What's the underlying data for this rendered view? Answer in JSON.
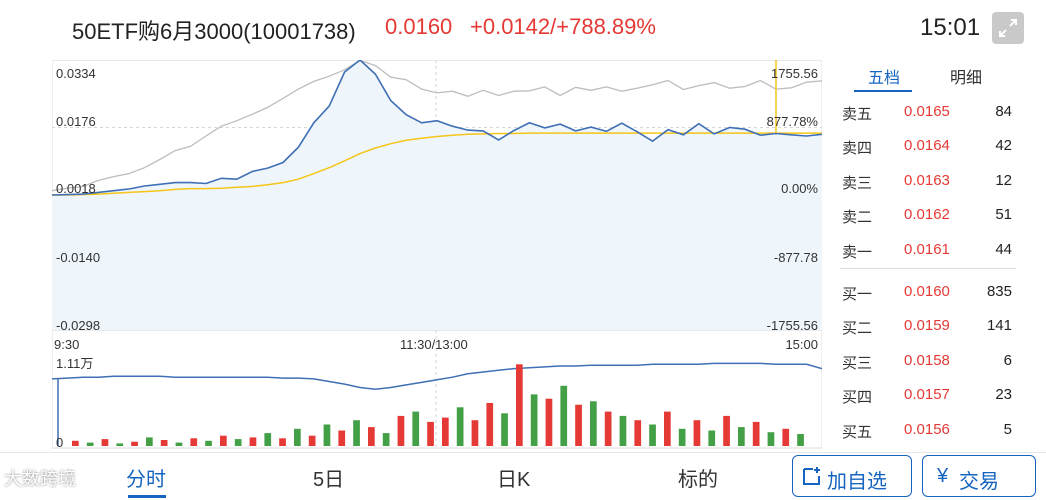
{
  "header": {
    "title": "50ETF购6月3000(10001738)",
    "price": "0.0160",
    "change": "+0.0142/+788.89%",
    "time": "15:01",
    "expand_icon": "expand-arrows-icon"
  },
  "chart": {
    "y_left": [
      "0.0334",
      "0.0176",
      "0.0018",
      "-0.0140",
      "-0.0298"
    ],
    "y_right": [
      "1755.56",
      "877.78%",
      "0.00%",
      "-877.78",
      "-1755.56"
    ],
    "x_labels": [
      "9:30",
      "11:30/13:00",
      "15:00"
    ],
    "volume_label": "1.11万",
    "volume_zero": "0",
    "colors": {
      "price": "#3f6fb5",
      "avg": "#f5c518",
      "ref": "#bdbdbd",
      "up": "#e53935",
      "down": "#43a047",
      "fill": "#eef5fb"
    }
  },
  "chart_data": {
    "type": "line",
    "ylim": [
      -0.0298,
      0.0334
    ],
    "yticks": [
      0.0334,
      0.0176,
      0.0018,
      -0.014,
      -0.0298
    ],
    "series": [
      {
        "values": [
          0.0018,
          0.0019,
          0.002,
          0.0024,
          0.0028,
          0.0032,
          0.0039,
          0.0043,
          0.0047,
          0.0047,
          0.0045,
          0.0057,
          0.0055,
          0.0073,
          0.0081,
          0.0094,
          0.013,
          0.0187,
          0.0226,
          0.0306,
          0.0334,
          0.0301,
          0.0239,
          0.0206,
          0.0187,
          0.0192,
          0.0179,
          0.017,
          0.0168,
          0.0147,
          0.0169,
          0.0187,
          0.0175,
          0.0184,
          0.0168,
          0.0177,
          0.0167,
          0.0186,
          0.0166,
          0.0144,
          0.0171,
          0.0159,
          0.0185,
          0.0161,
          0.0176,
          0.0172,
          0.0158,
          0.0162,
          0.0159,
          0.0156,
          0.016
        ]
      },
      {
        "values": [
          0.0018,
          0.0018,
          0.0019,
          0.002,
          0.0022,
          0.0024,
          0.0026,
          0.0028,
          0.0031,
          0.0033,
          0.0033,
          0.0034,
          0.0036,
          0.0038,
          0.0042,
          0.0047,
          0.0055,
          0.0068,
          0.0082,
          0.0098,
          0.0115,
          0.0128,
          0.0138,
          0.0146,
          0.0151,
          0.0155,
          0.0158,
          0.016,
          0.0161,
          0.0162,
          0.0162,
          0.0163,
          0.0163,
          0.0163,
          0.0163,
          0.0163,
          0.0163,
          0.0163,
          0.0163,
          0.0163,
          0.0163,
          0.0163,
          0.0163,
          0.0163,
          0.0163,
          0.0163,
          0.0163,
          0.0163,
          0.0163,
          0.0163,
          0.0163
        ]
      },
      {
        "values": [
          0.0028,
          0.0034,
          0.0038,
          0.0052,
          0.0061,
          0.0068,
          0.0082,
          0.0101,
          0.0122,
          0.0132,
          0.0156,
          0.0179,
          0.0192,
          0.0207,
          0.0223,
          0.0244,
          0.0266,
          0.0284,
          0.0296,
          0.0311,
          0.0333,
          0.0321,
          0.0294,
          0.0288,
          0.0266,
          0.0257,
          0.0261,
          0.0249,
          0.0263,
          0.0251,
          0.0261,
          0.0262,
          0.0271,
          0.0251,
          0.027,
          0.0263,
          0.0271,
          0.0261,
          0.0268,
          0.0276,
          0.0286,
          0.0265,
          0.0274,
          0.0281,
          0.0268,
          0.0272,
          0.0286,
          0.0266,
          0.0269,
          0.0282,
          0.0285
        ]
      }
    ],
    "volume": {
      "ymax_label": "1.11万",
      "cumulative": [
        0.78,
        0.79,
        0.8,
        0.8,
        0.81,
        0.81,
        0.81,
        0.81,
        0.8,
        0.8,
        0.8,
        0.8,
        0.8,
        0.8,
        0.8,
        0.79,
        0.79,
        0.78,
        0.75,
        0.72,
        0.68,
        0.66,
        0.68,
        0.71,
        0.74,
        0.77,
        0.8,
        0.84,
        0.86,
        0.88,
        0.9,
        0.91,
        0.92,
        0.93,
        0.93,
        0.94,
        0.94,
        0.94,
        0.94,
        0.95,
        0.95,
        0.95,
        0.95,
        0.96,
        0.96,
        0.96,
        0.96,
        0.95,
        0.95,
        0.95,
        0.9
      ],
      "bars": [
        {
          "v": 0.06,
          "c": "up"
        },
        {
          "v": 0.04,
          "c": "down"
        },
        {
          "v": 0.08,
          "c": "up"
        },
        {
          "v": 0.03,
          "c": "down"
        },
        {
          "v": 0.05,
          "c": "up"
        },
        {
          "v": 0.1,
          "c": "down"
        },
        {
          "v": 0.07,
          "c": "up"
        },
        {
          "v": 0.04,
          "c": "down"
        },
        {
          "v": 0.09,
          "c": "up"
        },
        {
          "v": 0.06,
          "c": "down"
        },
        {
          "v": 0.12,
          "c": "up"
        },
        {
          "v": 0.08,
          "c": "down"
        },
        {
          "v": 0.1,
          "c": "up"
        },
        {
          "v": 0.15,
          "c": "down"
        },
        {
          "v": 0.09,
          "c": "up"
        },
        {
          "v": 0.2,
          "c": "down"
        },
        {
          "v": 0.12,
          "c": "up"
        },
        {
          "v": 0.25,
          "c": "down"
        },
        {
          "v": 0.18,
          "c": "up"
        },
        {
          "v": 0.3,
          "c": "down"
        },
        {
          "v": 0.22,
          "c": "up"
        },
        {
          "v": 0.15,
          "c": "down"
        },
        {
          "v": 0.35,
          "c": "up"
        },
        {
          "v": 0.4,
          "c": "down"
        },
        {
          "v": 0.28,
          "c": "up"
        },
        {
          "v": 0.33,
          "c": "up"
        },
        {
          "v": 0.45,
          "c": "down"
        },
        {
          "v": 0.3,
          "c": "up"
        },
        {
          "v": 0.5,
          "c": "up"
        },
        {
          "v": 0.38,
          "c": "down"
        },
        {
          "v": 0.95,
          "c": "up"
        },
        {
          "v": 0.6,
          "c": "down"
        },
        {
          "v": 0.55,
          "c": "up"
        },
        {
          "v": 0.7,
          "c": "down"
        },
        {
          "v": 0.48,
          "c": "up"
        },
        {
          "v": 0.52,
          "c": "down"
        },
        {
          "v": 0.4,
          "c": "up"
        },
        {
          "v": 0.35,
          "c": "down"
        },
        {
          "v": 0.3,
          "c": "up"
        },
        {
          "v": 0.25,
          "c": "down"
        },
        {
          "v": 0.4,
          "c": "up"
        },
        {
          "v": 0.2,
          "c": "down"
        },
        {
          "v": 0.3,
          "c": "up"
        },
        {
          "v": 0.18,
          "c": "down"
        },
        {
          "v": 0.35,
          "c": "up"
        },
        {
          "v": 0.22,
          "c": "down"
        },
        {
          "v": 0.28,
          "c": "up"
        },
        {
          "v": 0.16,
          "c": "down"
        },
        {
          "v": 0.2,
          "c": "up"
        },
        {
          "v": 0.14,
          "c": "down"
        }
      ]
    }
  },
  "side": {
    "tabs": [
      "五档",
      "明细"
    ],
    "sell": [
      {
        "name": "卖五",
        "price": "0.0165",
        "vol": "84"
      },
      {
        "name": "卖四",
        "price": "0.0164",
        "vol": "42"
      },
      {
        "name": "卖三",
        "price": "0.0163",
        "vol": "12"
      },
      {
        "name": "卖二",
        "price": "0.0162",
        "vol": "51"
      },
      {
        "name": "卖一",
        "price": "0.0161",
        "vol": "44"
      }
    ],
    "buy": [
      {
        "name": "买一",
        "price": "0.0160",
        "vol": "835"
      },
      {
        "name": "买二",
        "price": "0.0159",
        "vol": "141"
      },
      {
        "name": "买三",
        "price": "0.0158",
        "vol": "6"
      },
      {
        "name": "买四",
        "price": "0.0157",
        "vol": "23"
      },
      {
        "name": "买五",
        "price": "0.0156",
        "vol": "5"
      }
    ]
  },
  "bottom": {
    "tabs": [
      "分时",
      "5日",
      "日K",
      "标的"
    ],
    "add_label": "加自选",
    "add_icon": "add-watchlist-icon",
    "trade_label": "交易",
    "trade_icon": "yen-icon",
    "watermark": "大数跨境"
  }
}
